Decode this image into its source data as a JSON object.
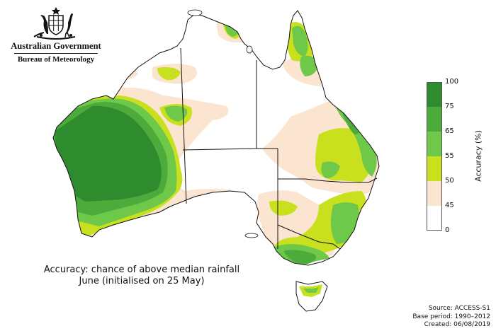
{
  "header": {
    "gov_name": "Australian Government",
    "agency_name": "Bureau of Meteorology",
    "logo_icon": "coat-of-arms-icon"
  },
  "caption": {
    "line1": "Accuracy: chance of above median rainfall",
    "line2": "June (initialised on 25 May)"
  },
  "source": {
    "line1": "Source: ACCESS-S1",
    "line2": "Base period: 1990–2012",
    "line3": "Created: 06/08/2019"
  },
  "legend": {
    "title": "Accuracy (%)",
    "bins": [
      {
        "min": 75,
        "max": 100,
        "color": "#2e8b2e"
      },
      {
        "min": 65,
        "max": 75,
        "color": "#4cab3a"
      },
      {
        "min": 55,
        "max": 65,
        "color": "#6ec84a"
      },
      {
        "min": 50,
        "max": 55,
        "color": "#c8e01e"
      },
      {
        "min": 45,
        "max": 50,
        "color": "#fbe5d0"
      },
      {
        "min": 0,
        "max": 45,
        "color": "#ffffff"
      }
    ],
    "ticks": [
      "100",
      "75",
      "65",
      "55",
      "50",
      "45",
      "0"
    ]
  },
  "map": {
    "land_color": "#ffffff",
    "outline_color": "#111111",
    "border_color": "#111111"
  }
}
